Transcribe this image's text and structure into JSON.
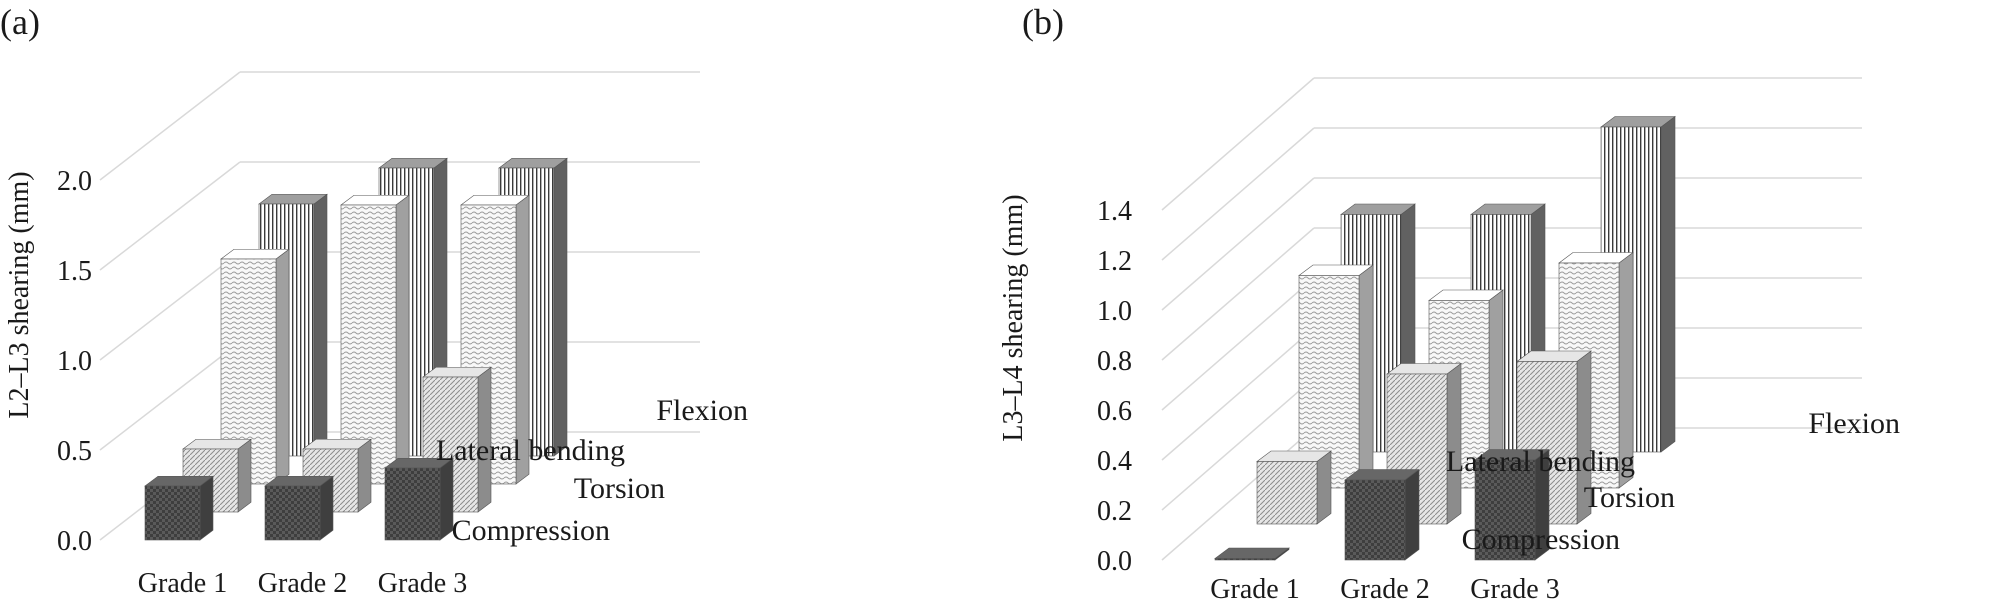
{
  "colors": {
    "grid": "#d9d9d9",
    "text": "#1a1a1a",
    "compression": "#5a5a5a",
    "torsion": "#c8c8c8",
    "lateral_bending": "#e4e4e4",
    "flexion": "#8a8a8a"
  },
  "chart_data": [
    {
      "type": "bar",
      "subtype": "3d-column",
      "panel_label": "(a)",
      "ylabel": "L2–L3 shearing (mm)",
      "ylim": [
        0,
        2.0
      ],
      "yticks": [
        "0.0",
        "0.5",
        "1.0",
        "1.5",
        "2.0"
      ],
      "grid": true,
      "categories": [
        "Grade 1",
        "Grade 2",
        "Grade 3"
      ],
      "series": [
        {
          "name": "Compression",
          "values": [
            0.3,
            0.3,
            0.4
          ]
        },
        {
          "name": "Torsion",
          "values": [
            0.35,
            0.35,
            0.75
          ]
        },
        {
          "name": "Lateral bending",
          "values": [
            1.25,
            1.55,
            1.55
          ]
        },
        {
          "name": "Flexion",
          "values": [
            1.4,
            1.6,
            1.6
          ]
        }
      ]
    },
    {
      "type": "bar",
      "subtype": "3d-column",
      "panel_label": "(b)",
      "ylabel": "L3–L4 shearing (mm)",
      "ylim": [
        0,
        1.4
      ],
      "yticks": [
        "0.0",
        "0.2",
        "0.4",
        "0.6",
        "0.8",
        "1.0",
        "1.2",
        "1.4"
      ],
      "grid": true,
      "categories": [
        "Grade 1",
        "Grade 2",
        "Grade 3"
      ],
      "series": [
        {
          "name": "Compression",
          "values": [
            0.0,
            0.32,
            0.4
          ]
        },
        {
          "name": "Torsion",
          "values": [
            0.25,
            0.6,
            0.65
          ]
        },
        {
          "name": "Lateral bending",
          "values": [
            0.85,
            0.75,
            0.9
          ]
        },
        {
          "name": "Flexion",
          "values": [
            0.95,
            0.95,
            1.3
          ]
        }
      ]
    }
  ]
}
